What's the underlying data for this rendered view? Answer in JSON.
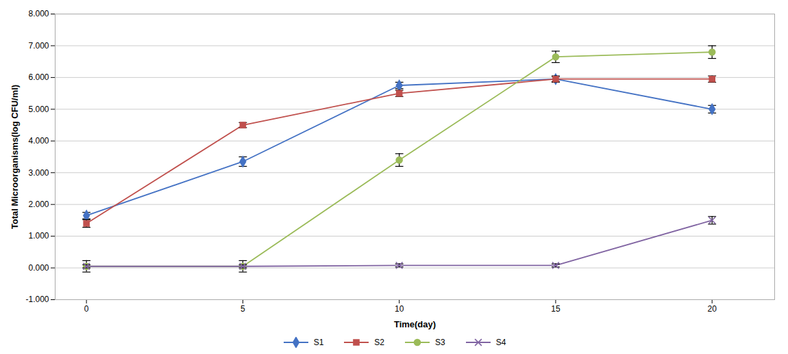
{
  "chart_data": {
    "type": "line",
    "xlabel": "Time(day)",
    "ylabel": "Total Microorganisms(log CFU/ml)",
    "x": [
      0,
      5,
      10,
      15,
      20
    ],
    "series": [
      {
        "name": "S1",
        "color": "#4472C4",
        "marker": "diamond",
        "values": [
          1.65,
          3.35,
          5.75,
          5.95,
          5.0
        ],
        "errors": [
          0.1,
          0.15,
          0.1,
          0.08,
          0.12
        ]
      },
      {
        "name": "S2",
        "color": "#C0504D",
        "marker": "square",
        "values": [
          1.4,
          4.5,
          5.5,
          5.95,
          5.95
        ],
        "errors": [
          0.12,
          0.08,
          0.1,
          0.1,
          0.1
        ]
      },
      {
        "name": "S3",
        "color": "#9BBB59",
        "marker": "circle",
        "values": [
          0.05,
          0.05,
          3.4,
          6.65,
          6.8
        ],
        "errors": [
          0.18,
          0.18,
          0.2,
          0.18,
          0.2
        ]
      },
      {
        "name": "S4",
        "color": "#8064A2",
        "marker": "x",
        "values": [
          0.05,
          0.05,
          0.08,
          0.08,
          1.5
        ],
        "errors": [
          0.05,
          0.05,
          0.05,
          0.05,
          0.12
        ]
      }
    ],
    "xlim": [
      -1,
      22
    ],
    "xticks": [
      0,
      5,
      10,
      15,
      20
    ],
    "ylim": [
      -1.0,
      8.0
    ],
    "yticks": [
      {
        "value": -1.0,
        "label": "-1.000"
      },
      {
        "value": 0.0,
        "label": "0.000"
      },
      {
        "value": 1.0,
        "label": "1.000"
      },
      {
        "value": 2.0,
        "label": "2.000"
      },
      {
        "value": 3.0,
        "label": "3.000"
      },
      {
        "value": 4.0,
        "label": "4.000"
      },
      {
        "value": 5.0,
        "label": "5.000"
      },
      {
        "value": 6.0,
        "label": "6.000"
      },
      {
        "value": 7.0,
        "label": "7.000"
      },
      {
        "value": 8.0,
        "label": "8.000"
      }
    ],
    "grid": true,
    "legend": "bottom"
  }
}
